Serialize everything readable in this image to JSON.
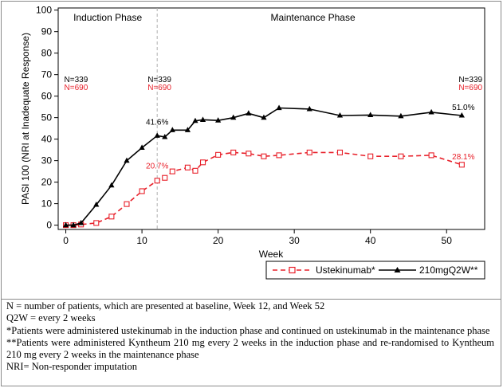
{
  "chart_data": {
    "type": "line",
    "xlabel": "Week",
    "ylabel": "PASI 100 (NRI at Inadequate Response)",
    "xlim": [
      -1,
      55
    ],
    "ylim": [
      -2,
      101
    ],
    "x_ticks": [
      0,
      10,
      20,
      30,
      40,
      50
    ],
    "y_ticks": [
      0,
      10,
      20,
      30,
      40,
      50,
      60,
      70,
      80,
      90,
      100
    ],
    "grid": false,
    "legend_position": "bottom-right",
    "phase_divider_week": 12,
    "phase_labels": [
      "Induction Phase",
      "Maintenance Phase"
    ],
    "series": [
      {
        "name": "Ustekinumab*",
        "color": "#e8202a",
        "marker": "open-square",
        "line_style": "dashed",
        "x": [
          0,
          1,
          2,
          4,
          6,
          8,
          10,
          12,
          13,
          14,
          16,
          17,
          18,
          20,
          22,
          24,
          26,
          28,
          32,
          36,
          40,
          44,
          48,
          52
        ],
        "values": [
          0,
          0,
          0.3,
          1,
          4,
          9.8,
          15.8,
          20.7,
          22,
          25,
          26.8,
          25.3,
          29.2,
          32.7,
          33.8,
          33.3,
          32,
          32.5,
          33.8,
          33.8,
          32,
          32,
          32.5,
          28.1
        ]
      },
      {
        "name": "210mgQ2W**",
        "color": "#000000",
        "marker": "filled-triangle",
        "line_style": "solid",
        "x": [
          0,
          1,
          2,
          4,
          6,
          8,
          10,
          12,
          13,
          14,
          16,
          17,
          18,
          20,
          22,
          24,
          26,
          28,
          32,
          36,
          40,
          44,
          48,
          52
        ],
        "values": [
          0,
          0,
          1,
          9.5,
          18.5,
          30,
          36,
          41.6,
          41,
          44.2,
          44.2,
          48.5,
          49,
          48.7,
          50,
          52,
          50,
          54.5,
          54,
          51,
          51.2,
          50.7,
          52.5,
          51
        ]
      }
    ],
    "annotations": [
      {
        "text": "41.6%",
        "x": 12,
        "y": 41.6,
        "series": "210mgQ2W**"
      },
      {
        "text": "20.7%",
        "x": 12,
        "y": 20.7,
        "series": "Ustekinumab*"
      },
      {
        "text": "51.0%",
        "x": 52,
        "y": 51,
        "series": "210mgQ2W**"
      },
      {
        "text": "28.1%",
        "x": 52,
        "y": 28.1,
        "series": "Ustekinumab*"
      }
    ],
    "n_labels": [
      {
        "week": 0,
        "black": "N=339",
        "red": "N=690"
      },
      {
        "week": 12,
        "black": "N=339",
        "red": "N=690"
      },
      {
        "week": 52,
        "black": "N=339",
        "red": "N=690"
      }
    ]
  },
  "footnotes": [
    "N = number of patients, which are presented at baseline, Week 12, and Week 52",
    "Q2W = every 2 weeks",
    "*Patients were administered ustekinumab in the induction phase and continued on ustekinumab in the maintenance phase",
    "**Patients were administered Kyntheum 210 mg every 2 weeks in the induction phase and re-randomised to Kyntheum 210 mg every 2 weeks in the maintenance phase",
    "NRI= Non-responder imputation"
  ]
}
